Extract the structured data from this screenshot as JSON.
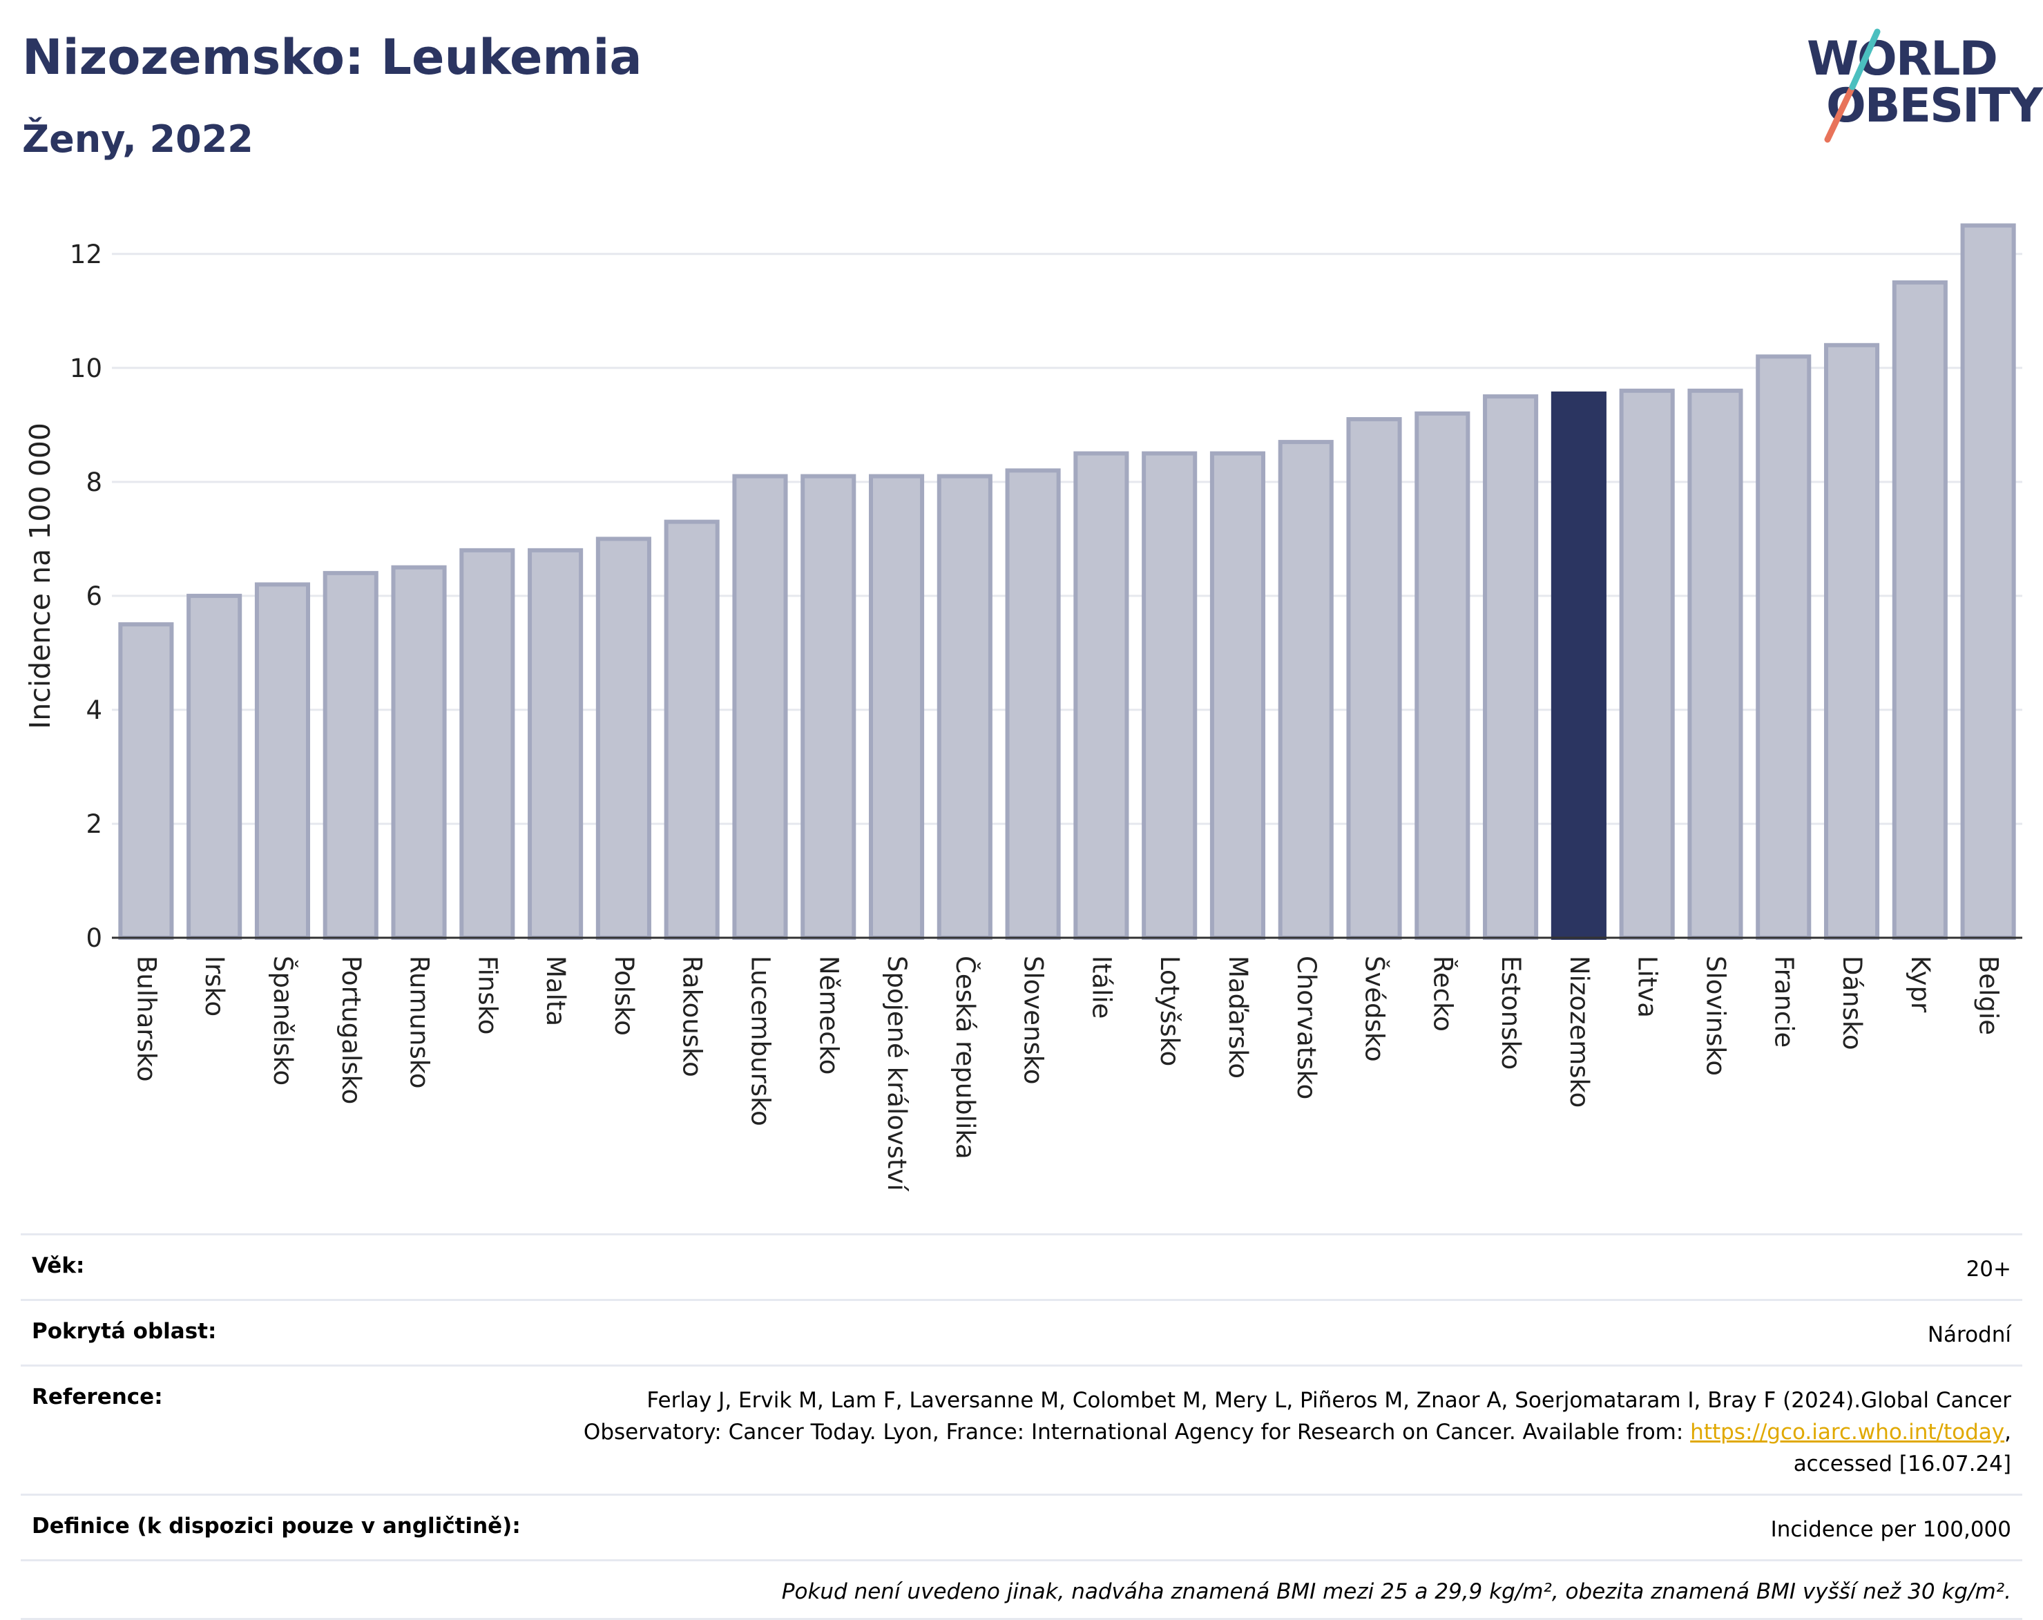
{
  "header": {
    "title": "Nizozemsko: Leukemia",
    "subtitle": "Ženy, 2022",
    "logo_line1": "WORLD",
    "logo_line2": "OBESITY"
  },
  "chart_data": {
    "type": "bar",
    "title": "",
    "ylabel": "Incidence na 100 000",
    "xlabel": "",
    "ylim": [
      0,
      12.7
    ],
    "yticks": [
      0,
      2,
      4,
      6,
      8,
      10,
      12
    ],
    "grid": true,
    "highlight": "Nizozemsko",
    "colors": {
      "bar": "#c0c3d1",
      "bar_border": "#a3a8bf",
      "highlight": "#2b3561",
      "grid": "#e6e8ee",
      "axis": "#333333"
    },
    "categories": [
      "Bulharsko",
      "Irsko",
      "Španělsko",
      "Portugalsko",
      "Rumunsko",
      "Finsko",
      "Malta",
      "Polsko",
      "Rakousko",
      "Lucembursko",
      "Německo",
      "Spojené království",
      "Česká republika",
      "Slovensko",
      "Itálie",
      "Lotyšsko",
      "Maďarsko",
      "Chorvatsko",
      "Švédsko",
      "Řecko",
      "Estonsko",
      "Nizozemsko",
      "Litva",
      "Slovinsko",
      "Francie",
      "Dánsko",
      "Kypr",
      "Belgie"
    ],
    "values": [
      5.5,
      6.0,
      6.2,
      6.4,
      6.5,
      6.8,
      6.8,
      7.0,
      7.3,
      8.1,
      8.1,
      8.1,
      8.1,
      8.2,
      8.5,
      8.5,
      8.5,
      8.7,
      9.1,
      9.2,
      9.5,
      9.55,
      9.6,
      9.6,
      10.2,
      10.4,
      11.5,
      12.5
    ]
  },
  "info": {
    "age_label": "Věk:",
    "age_value": "20+",
    "area_label": "Pokrytá oblast:",
    "area_value": "Národní",
    "reference_label": "Reference:",
    "reference_text_1": "Ferlay J, Ervik M, Lam F, Laversanne M, Colombet M, Mery L, Piñeros M, Znaor A, Soerjomataram I, Bray F (2024).Global Cancer",
    "reference_text_2": "Observatory: Cancer Today. Lyon, France: International Agency for Research on Cancer. Available from: ",
    "reference_link": "https://gco.iarc.who.int/today",
    "reference_text_3": ",",
    "reference_text_4": "accessed [16.07.24]",
    "definition_label": "Definice (k dispozici pouze v angličtině):",
    "definition_value": "Incidence per 100,000",
    "note": "Pokud není uvedeno jinak, nadváha znamená BMI mezi 25 a 29,9 kg/m², obezita znamená BMI vyšší než 30 kg/m²."
  }
}
